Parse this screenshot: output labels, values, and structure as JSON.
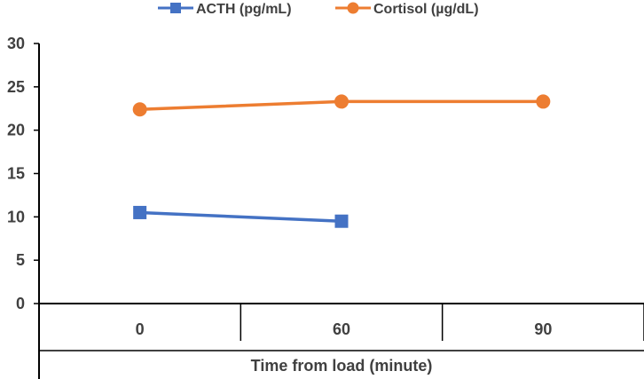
{
  "chart_data": {
    "type": "line",
    "title": "",
    "categories": [
      "0",
      "60",
      "90"
    ],
    "xlabel": "Time from load (minute)",
    "ylabel": "",
    "ylim": [
      0,
      30
    ],
    "yticks": [
      0,
      5,
      10,
      15,
      20,
      25,
      30
    ],
    "grid": false,
    "legend_position": "top",
    "series": [
      {
        "name": "ACTH (pg/mL)",
        "color": "#4472C4",
        "marker": "square",
        "values": [
          10.5,
          9.5,
          null
        ]
      },
      {
        "name": "Cortisol (µg/dL)",
        "color": "#ED7D31",
        "marker": "circle",
        "values": [
          22.4,
          23.3,
          23.3
        ]
      }
    ]
  }
}
